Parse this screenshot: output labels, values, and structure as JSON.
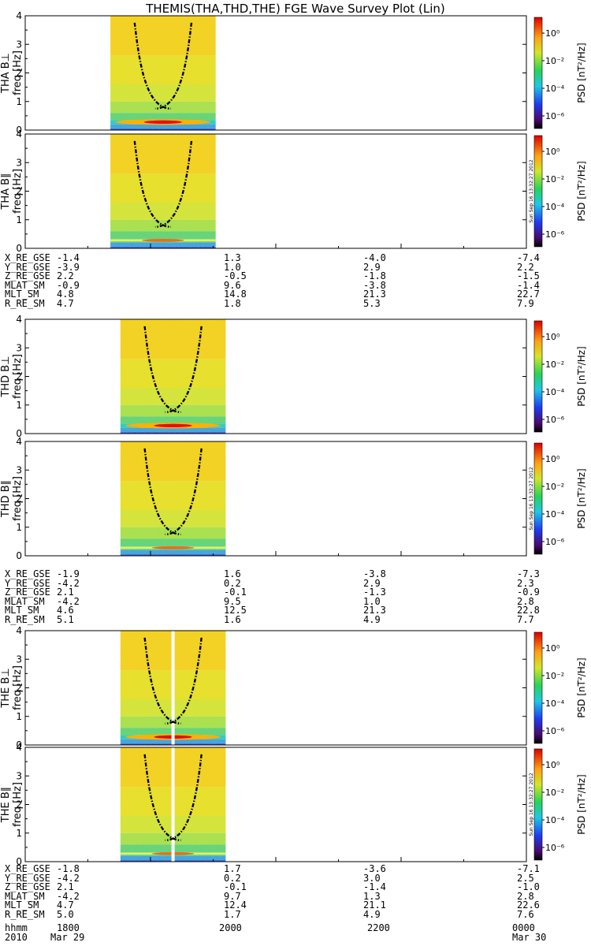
{
  "title": "THEMIS(THA,THD,THE) FGE Wave Survey Plot (Lin)",
  "colors": {
    "background_bands": [
      "#ffd200",
      "#f2ea2a",
      "#b8e63a",
      "#6fd86a",
      "#2fc0c8",
      "#3a70e6",
      "#30106a"
    ],
    "trace": "#000000"
  },
  "colorbar": {
    "title": "PSD [nT²/Hz]",
    "tick_labels": [
      "10⁰",
      "10⁻²",
      "10⁻⁴",
      "10⁻⁶"
    ],
    "timestamp": "Sun Sep 16 13:32:27 2012"
  },
  "y_axis": {
    "title": "freq [Hz]",
    "tick_labels": [
      "0",
      "1",
      "2",
      "3",
      "4"
    ]
  },
  "chart_data": {
    "type": "heatmap",
    "x_unit": "hhmm",
    "x_range": [
      "1800",
      "0000"
    ],
    "ylim": [
      0,
      4
    ],
    "panels": [
      {
        "probe": "THA",
        "label": "THA B⊥",
        "component": "perp",
        "start_x": 0.17,
        "end_x": 0.38,
        "gap": null
      },
      {
        "probe": "THA",
        "label": "THA B∥",
        "component": "par",
        "start_x": 0.17,
        "end_x": 0.38,
        "gap": null
      },
      {
        "probe": "THD",
        "label": "THD B⊥",
        "component": "perp",
        "start_x": 0.19,
        "end_x": 0.4,
        "gap": null
      },
      {
        "probe": "THD",
        "label": "THD B∥",
        "component": "par",
        "start_x": 0.19,
        "end_x": 0.4,
        "gap": null
      },
      {
        "probe": "THE",
        "label": "THE B⊥",
        "component": "perp",
        "start_x": 0.19,
        "end_x": 0.4,
        "gap": 0.295
      },
      {
        "probe": "THE",
        "label": "THE B∥",
        "component": "par",
        "start_x": 0.19,
        "end_x": 0.4,
        "gap": 0.295
      }
    ]
  },
  "ephemeris": [
    {
      "rows": [
        {
          "label": "X_RE_GSE",
          "values": [
            "-1.4",
            "1.3",
            "-4.0",
            "-7.4"
          ]
        },
        {
          "label": "Y_RE_GSE",
          "values": [
            "-3.9",
            "1.0",
            "2.9",
            "2.2"
          ]
        },
        {
          "label": "Z_RE_GSE",
          "values": [
            "2.2",
            "-0.5",
            "-1.8",
            "-1.5"
          ]
        },
        {
          "label": "MLAT_SM",
          "values": [
            "-0.9",
            "9.6",
            "-3.8",
            "-1.4"
          ]
        },
        {
          "label": "MLT_SM",
          "values": [
            "4.8",
            "14.8",
            "21.3",
            "22.7"
          ]
        },
        {
          "label": "R_RE_SM",
          "values": [
            "4.7",
            "1.8",
            "5.3",
            "7.9"
          ]
        }
      ]
    },
    {
      "rows": [
        {
          "label": "X_RE_GSE",
          "values": [
            "-1.9",
            "1.6",
            "-3.8",
            "-7.3"
          ]
        },
        {
          "label": "Y_RE_GSE",
          "values": [
            "-4.2",
            "0.2",
            "2.9",
            "2.3"
          ]
        },
        {
          "label": "Z_RE_GSE",
          "values": [
            "2.1",
            "-0.1",
            "-1.3",
            "-0.9"
          ]
        },
        {
          "label": "MLAT_SM",
          "values": [
            "-4.2",
            "9.5",
            "1.0",
            "2.8"
          ]
        },
        {
          "label": "MLT_SM",
          "values": [
            "4.6",
            "12.5",
            "21.3",
            "22.8"
          ]
        },
        {
          "label": "R_RE_SM",
          "values": [
            "5.1",
            "1.6",
            "4.9",
            "7.7"
          ]
        }
      ]
    },
    {
      "rows": [
        {
          "label": "X_RE_GSE",
          "values": [
            "-1.8",
            "1.7",
            "-3.6",
            "-7.1"
          ]
        },
        {
          "label": "Y_RE_GSE",
          "values": [
            "-4.2",
            "0.2",
            "3.0",
            "2.5"
          ]
        },
        {
          "label": "Z_RE_GSE",
          "values": [
            "2.1",
            "-0.1",
            "-1.4",
            "-1.0"
          ]
        },
        {
          "label": "MLAT_SM",
          "values": [
            "-4.2",
            "9.7",
            "1.3",
            "2.8"
          ]
        },
        {
          "label": "MLT_SM",
          "values": [
            "4.7",
            "12.4",
            "21.1",
            "22.6"
          ]
        },
        {
          "label": "R_RE_SM",
          "values": [
            "5.0",
            "1.7",
            "4.9",
            "7.6"
          ]
        }
      ]
    }
  ],
  "time_axis": {
    "row1_label": "hhmm",
    "row1_values": [
      "1800",
      "2000",
      "2200",
      "0000"
    ],
    "row2_label": "2010",
    "row2_values": [
      "Mar 29",
      "",
      "",
      "Mar 30"
    ]
  }
}
